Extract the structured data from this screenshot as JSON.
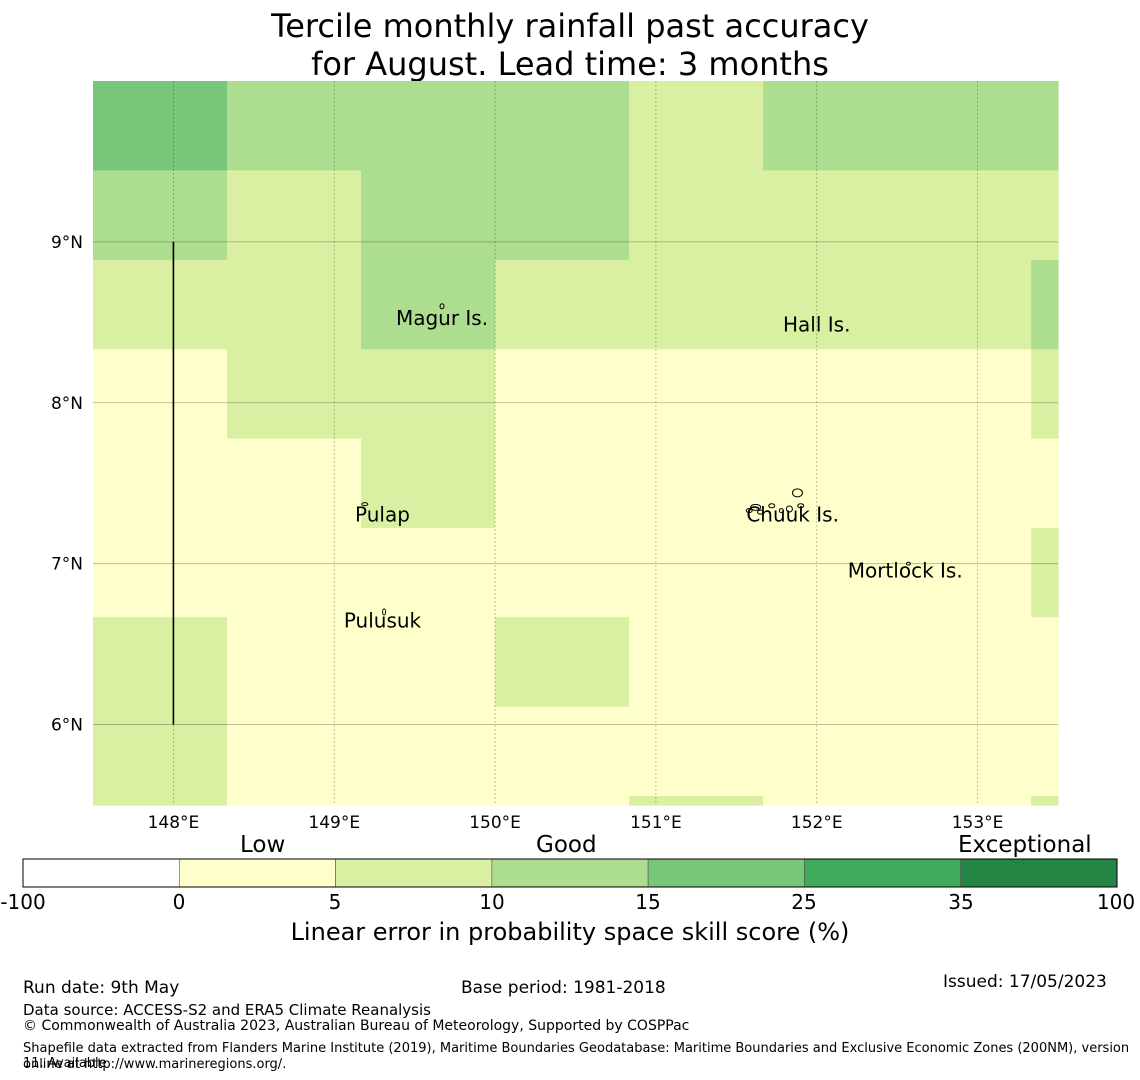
{
  "title_line1": "Tercile monthly rainfall past accuracy",
  "title_line2": "for August. Lead time: 3 months",
  "map": {
    "lon_range": [
      147.5,
      153.5
    ],
    "lat_range": [
      5.5,
      10.0
    ],
    "lon_ticks": [
      148,
      149,
      150,
      151,
      152,
      153
    ],
    "lon_tick_labels": [
      "148°E",
      "149°E",
      "150°E",
      "151°E",
      "152°E",
      "153°E"
    ],
    "lat_ticks": [
      6,
      7,
      8,
      9
    ],
    "lat_tick_labels": [
      "6°N",
      "7°N",
      "8°N",
      "9°N"
    ],
    "grid": true,
    "cell_lon_edges": [
      147.5,
      148.333,
      149.167,
      150.0,
      150.833,
      151.667,
      152.5,
      153.333,
      153.5
    ],
    "cell_lat_edges_top_down": [
      10.0,
      9.444,
      8.889,
      8.333,
      7.778,
      7.222,
      6.667,
      6.111,
      5.556,
      5.5
    ],
    "skill_grid_top_down": [
      [
        20,
        12,
        12,
        12,
        7,
        12,
        12,
        12
      ],
      [
        12,
        7,
        12,
        12,
        7,
        7,
        7,
        7
      ],
      [
        7,
        7,
        12,
        7,
        7,
        7,
        7,
        12
      ],
      [
        2,
        7,
        7,
        2,
        2,
        2,
        2,
        7
      ],
      [
        2,
        2,
        7,
        2,
        2,
        2,
        2,
        2
      ],
      [
        2,
        2,
        2,
        2,
        2,
        2,
        2,
        7
      ],
      [
        7,
        2,
        2,
        7,
        2,
        2,
        2,
        2
      ],
      [
        7,
        2,
        2,
        2,
        2,
        2,
        2,
        2
      ],
      [
        7,
        2,
        2,
        2,
        7,
        2,
        2,
        7
      ]
    ],
    "meridian_line": {
      "lon": 148.0,
      "lat_from": 6.0,
      "lat_to": 9.0
    },
    "places": [
      {
        "name": "Magur Is.",
        "lon": 149.67,
        "lat": 8.57
      },
      {
        "name": "Hall Is.",
        "lon": 152.0,
        "lat": 8.53
      },
      {
        "name": "Pulap",
        "lon": 149.3,
        "lat": 7.35
      },
      {
        "name": "Chuuk Is.",
        "lon": 151.85,
        "lat": 7.35
      },
      {
        "name": "Mortlock Is.",
        "lon": 152.55,
        "lat": 7.0
      },
      {
        "name": "Pulusuk",
        "lon": 149.3,
        "lat": 6.69
      }
    ]
  },
  "colorbar": {
    "categories": [
      "Low",
      "Good",
      "Exceptional"
    ],
    "bounds": [
      -100,
      0,
      5,
      10,
      15,
      25,
      35,
      100
    ],
    "tick_labels": [
      "-100",
      "0",
      "5",
      "10",
      "15",
      "25",
      "35",
      "100"
    ],
    "colors": [
      "#ffffff",
      "#ffffcc",
      "#d9f0a3",
      "#addd8e",
      "#78c679",
      "#41ab5d",
      "#238443"
    ],
    "label": "Linear error in probability space skill score (%)"
  },
  "footer": {
    "run_date": "Run date: 9th May",
    "base_period": "Base period: 1981-2018",
    "issued": "Issued: 17/05/2023",
    "data_source": "Data source: ACCESS-S2 and ERA5 Climate Reanalysis",
    "copyright": "© Commonwealth of Australia 2023, Australian Bureau of Meteorology, Supported by COSPPac",
    "shapefile_line1": "Shapefile data extracted from Flanders Marine Institute (2019), Maritime Boundaries Geodatabase: Maritime Boundaries and Exclusive Economic Zones (200NM), version 11. Available",
    "shapefile_line2": "online at http://www.marineregions.org/."
  }
}
